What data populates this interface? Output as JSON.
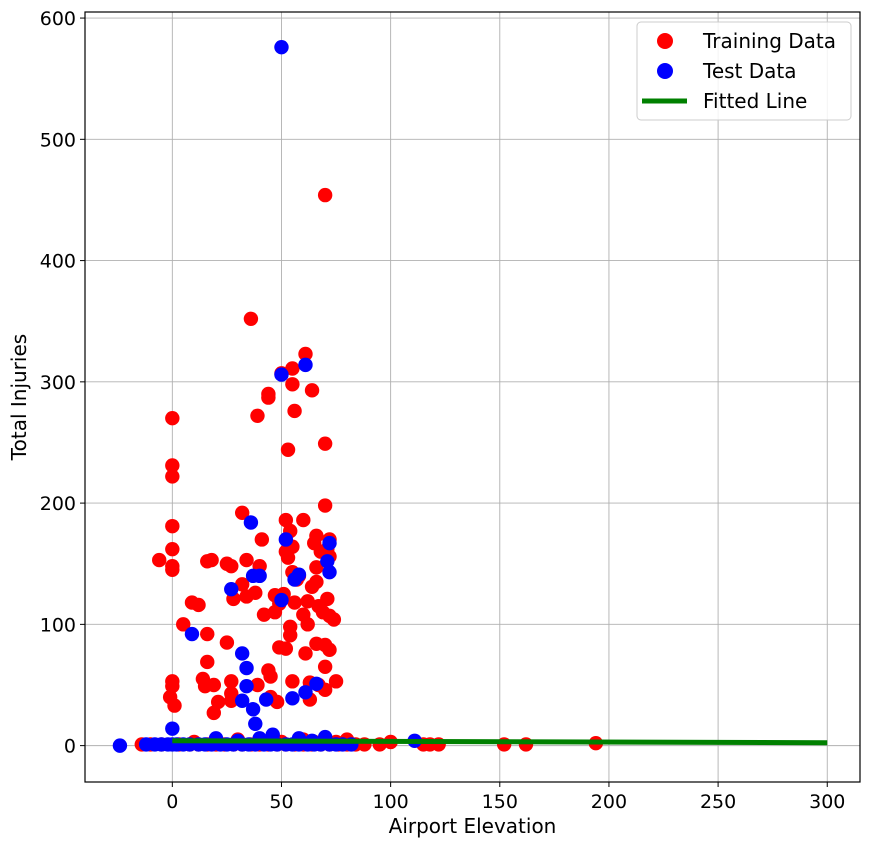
{
  "chart_data": {
    "type": "scatter",
    "xlabel": "Airport Elevation",
    "ylabel": "Total Injuries",
    "xlim": [
      -40,
      315
    ],
    "ylim": [
      -30,
      605
    ],
    "x_ticks": [
      0,
      50,
      100,
      150,
      200,
      250,
      300
    ],
    "y_ticks": [
      0,
      100,
      200,
      300,
      400,
      500,
      600
    ],
    "grid": true,
    "legend_position": "top-right",
    "legend": [
      "Training Data",
      "Test Data",
      "Fitted Line"
    ],
    "series": [
      {
        "name": "Training Data",
        "kind": "scatter",
        "color": "#ff0000",
        "points": [
          [
            0,
            270
          ],
          [
            0,
            231
          ],
          [
            0,
            222
          ],
          [
            0,
            181
          ],
          [
            0,
            162
          ],
          [
            0,
            148
          ],
          [
            0,
            145
          ],
          [
            -6,
            153
          ],
          [
            0,
            53
          ],
          [
            0,
            49
          ],
          [
            -1,
            40
          ],
          [
            1,
            33
          ],
          [
            5,
            100
          ],
          [
            9,
            118
          ],
          [
            12,
            116
          ],
          [
            14,
            55
          ],
          [
            15,
            49
          ],
          [
            16,
            92
          ],
          [
            16,
            69
          ],
          [
            16,
            152
          ],
          [
            18,
            153
          ],
          [
            19,
            50
          ],
          [
            19,
            27
          ],
          [
            21,
            36
          ],
          [
            25,
            150
          ],
          [
            25,
            85
          ],
          [
            27,
            148
          ],
          [
            27,
            53
          ],
          [
            27,
            43
          ],
          [
            27,
            37
          ],
          [
            28,
            121
          ],
          [
            32,
            192
          ],
          [
            32,
            133
          ],
          [
            34,
            153
          ],
          [
            34,
            123
          ],
          [
            36,
            352
          ],
          [
            38,
            126
          ],
          [
            39,
            50
          ],
          [
            39,
            272
          ],
          [
            40,
            148
          ],
          [
            41,
            170
          ],
          [
            42,
            108
          ],
          [
            44,
            290
          ],
          [
            44,
            287
          ],
          [
            44,
            62
          ],
          [
            45,
            57
          ],
          [
            45,
            40
          ],
          [
            47,
            124
          ],
          [
            47,
            110
          ],
          [
            48,
            36
          ],
          [
            49,
            117
          ],
          [
            49,
            81
          ],
          [
            50,
            307
          ],
          [
            51,
            125
          ],
          [
            52,
            186
          ],
          [
            52,
            160
          ],
          [
            52,
            80
          ],
          [
            53,
            244
          ],
          [
            53,
            155
          ],
          [
            54,
            177
          ],
          [
            54,
            98
          ],
          [
            54,
            91
          ],
          [
            55,
            311
          ],
          [
            55,
            298
          ],
          [
            55,
            164
          ],
          [
            55,
            143
          ],
          [
            55,
            53
          ],
          [
            56,
            276
          ],
          [
            56,
            118
          ],
          [
            57,
            137
          ],
          [
            58,
            140
          ],
          [
            60,
            186
          ],
          [
            60,
            108
          ],
          [
            61,
            323
          ],
          [
            61,
            76
          ],
          [
            62,
            119
          ],
          [
            62,
            100
          ],
          [
            63,
            52
          ],
          [
            63,
            38
          ],
          [
            64,
            293
          ],
          [
            64,
            131
          ],
          [
            65,
            167
          ],
          [
            66,
            173
          ],
          [
            66,
            147
          ],
          [
            66,
            135
          ],
          [
            66,
            84
          ],
          [
            67,
            115
          ],
          [
            67,
            50
          ],
          [
            68,
            160
          ],
          [
            69,
            110
          ],
          [
            70,
            454
          ],
          [
            70,
            249
          ],
          [
            70,
            198
          ],
          [
            70,
            83
          ],
          [
            70,
            65
          ],
          [
            70,
            46
          ],
          [
            71,
            162
          ],
          [
            71,
            121
          ],
          [
            72,
            170
          ],
          [
            72,
            156
          ],
          [
            72,
            107
          ],
          [
            72,
            79
          ],
          [
            74,
            104
          ],
          [
            75,
            53
          ],
          [
            -14,
            1
          ],
          [
            -10,
            1
          ],
          [
            -5,
            1
          ],
          [
            3,
            1
          ],
          [
            8,
            1
          ],
          [
            12,
            1
          ],
          [
            16,
            1
          ],
          [
            20,
            1
          ],
          [
            24,
            1
          ],
          [
            28,
            1
          ],
          [
            32,
            1
          ],
          [
            36,
            1
          ],
          [
            40,
            1
          ],
          [
            44,
            1
          ],
          [
            48,
            1
          ],
          [
            52,
            1
          ],
          [
            56,
            1
          ],
          [
            60,
            1
          ],
          [
            64,
            1
          ],
          [
            68,
            1
          ],
          [
            72,
            1
          ],
          [
            76,
            1
          ],
          [
            80,
            1
          ],
          [
            84,
            1
          ],
          [
            88,
            1
          ],
          [
            95,
            1
          ],
          [
            100,
            3
          ],
          [
            115,
            1
          ],
          [
            118,
            1
          ],
          [
            122,
            1
          ],
          [
            152,
            1
          ],
          [
            162,
            1
          ],
          [
            194,
            2
          ],
          [
            20,
            5
          ],
          [
            30,
            5
          ],
          [
            40,
            5
          ],
          [
            60,
            5
          ],
          [
            70,
            5
          ],
          [
            80,
            5
          ],
          [
            10,
            3
          ],
          [
            50,
            3
          ],
          [
            65,
            3
          ],
          [
            75,
            3
          ]
        ]
      },
      {
        "name": "Test Data",
        "kind": "scatter",
        "color": "#0000ff",
        "points": [
          [
            50,
            576
          ],
          [
            61,
            314
          ],
          [
            50,
            306
          ],
          [
            36,
            184
          ],
          [
            52,
            170
          ],
          [
            72,
            167
          ],
          [
            71,
            152
          ],
          [
            72,
            143
          ],
          [
            58,
            141
          ],
          [
            56,
            137
          ],
          [
            40,
            140
          ],
          [
            37,
            140
          ],
          [
            27,
            129
          ],
          [
            50,
            120
          ],
          [
            9,
            92
          ],
          [
            32,
            76
          ],
          [
            34,
            64
          ],
          [
            34,
            49
          ],
          [
            66,
            51
          ],
          [
            61,
            44
          ],
          [
            55,
            39
          ],
          [
            43,
            38
          ],
          [
            32,
            37
          ],
          [
            37,
            30
          ],
          [
            0,
            14
          ],
          [
            38,
            18
          ],
          [
            -24,
            0
          ],
          [
            -12,
            1
          ],
          [
            -8,
            1
          ],
          [
            -5,
            1
          ],
          [
            -2,
            1
          ],
          [
            0,
            1
          ],
          [
            2,
            1
          ],
          [
            5,
            1
          ],
          [
            8,
            1
          ],
          [
            12,
            1
          ],
          [
            15,
            1
          ],
          [
            18,
            1
          ],
          [
            22,
            1
          ],
          [
            25,
            1
          ],
          [
            28,
            1
          ],
          [
            32,
            1
          ],
          [
            35,
            1
          ],
          [
            38,
            1
          ],
          [
            42,
            1
          ],
          [
            45,
            1
          ],
          [
            48,
            1
          ],
          [
            52,
            1
          ],
          [
            55,
            1
          ],
          [
            58,
            1
          ],
          [
            62,
            1
          ],
          [
            65,
            1
          ],
          [
            68,
            1
          ],
          [
            72,
            1
          ],
          [
            75,
            1
          ],
          [
            78,
            1
          ],
          [
            82,
            1
          ],
          [
            111,
            4
          ],
          [
            20,
            6
          ],
          [
            40,
            6
          ],
          [
            46,
            9
          ],
          [
            58,
            6
          ],
          [
            70,
            7
          ],
          [
            30,
            4
          ],
          [
            64,
            4
          ]
        ]
      },
      {
        "name": "Fitted Line",
        "kind": "line",
        "color": "#008000",
        "x": [
          0,
          300
        ],
        "y": [
          4.0,
          2.4
        ]
      }
    ]
  }
}
